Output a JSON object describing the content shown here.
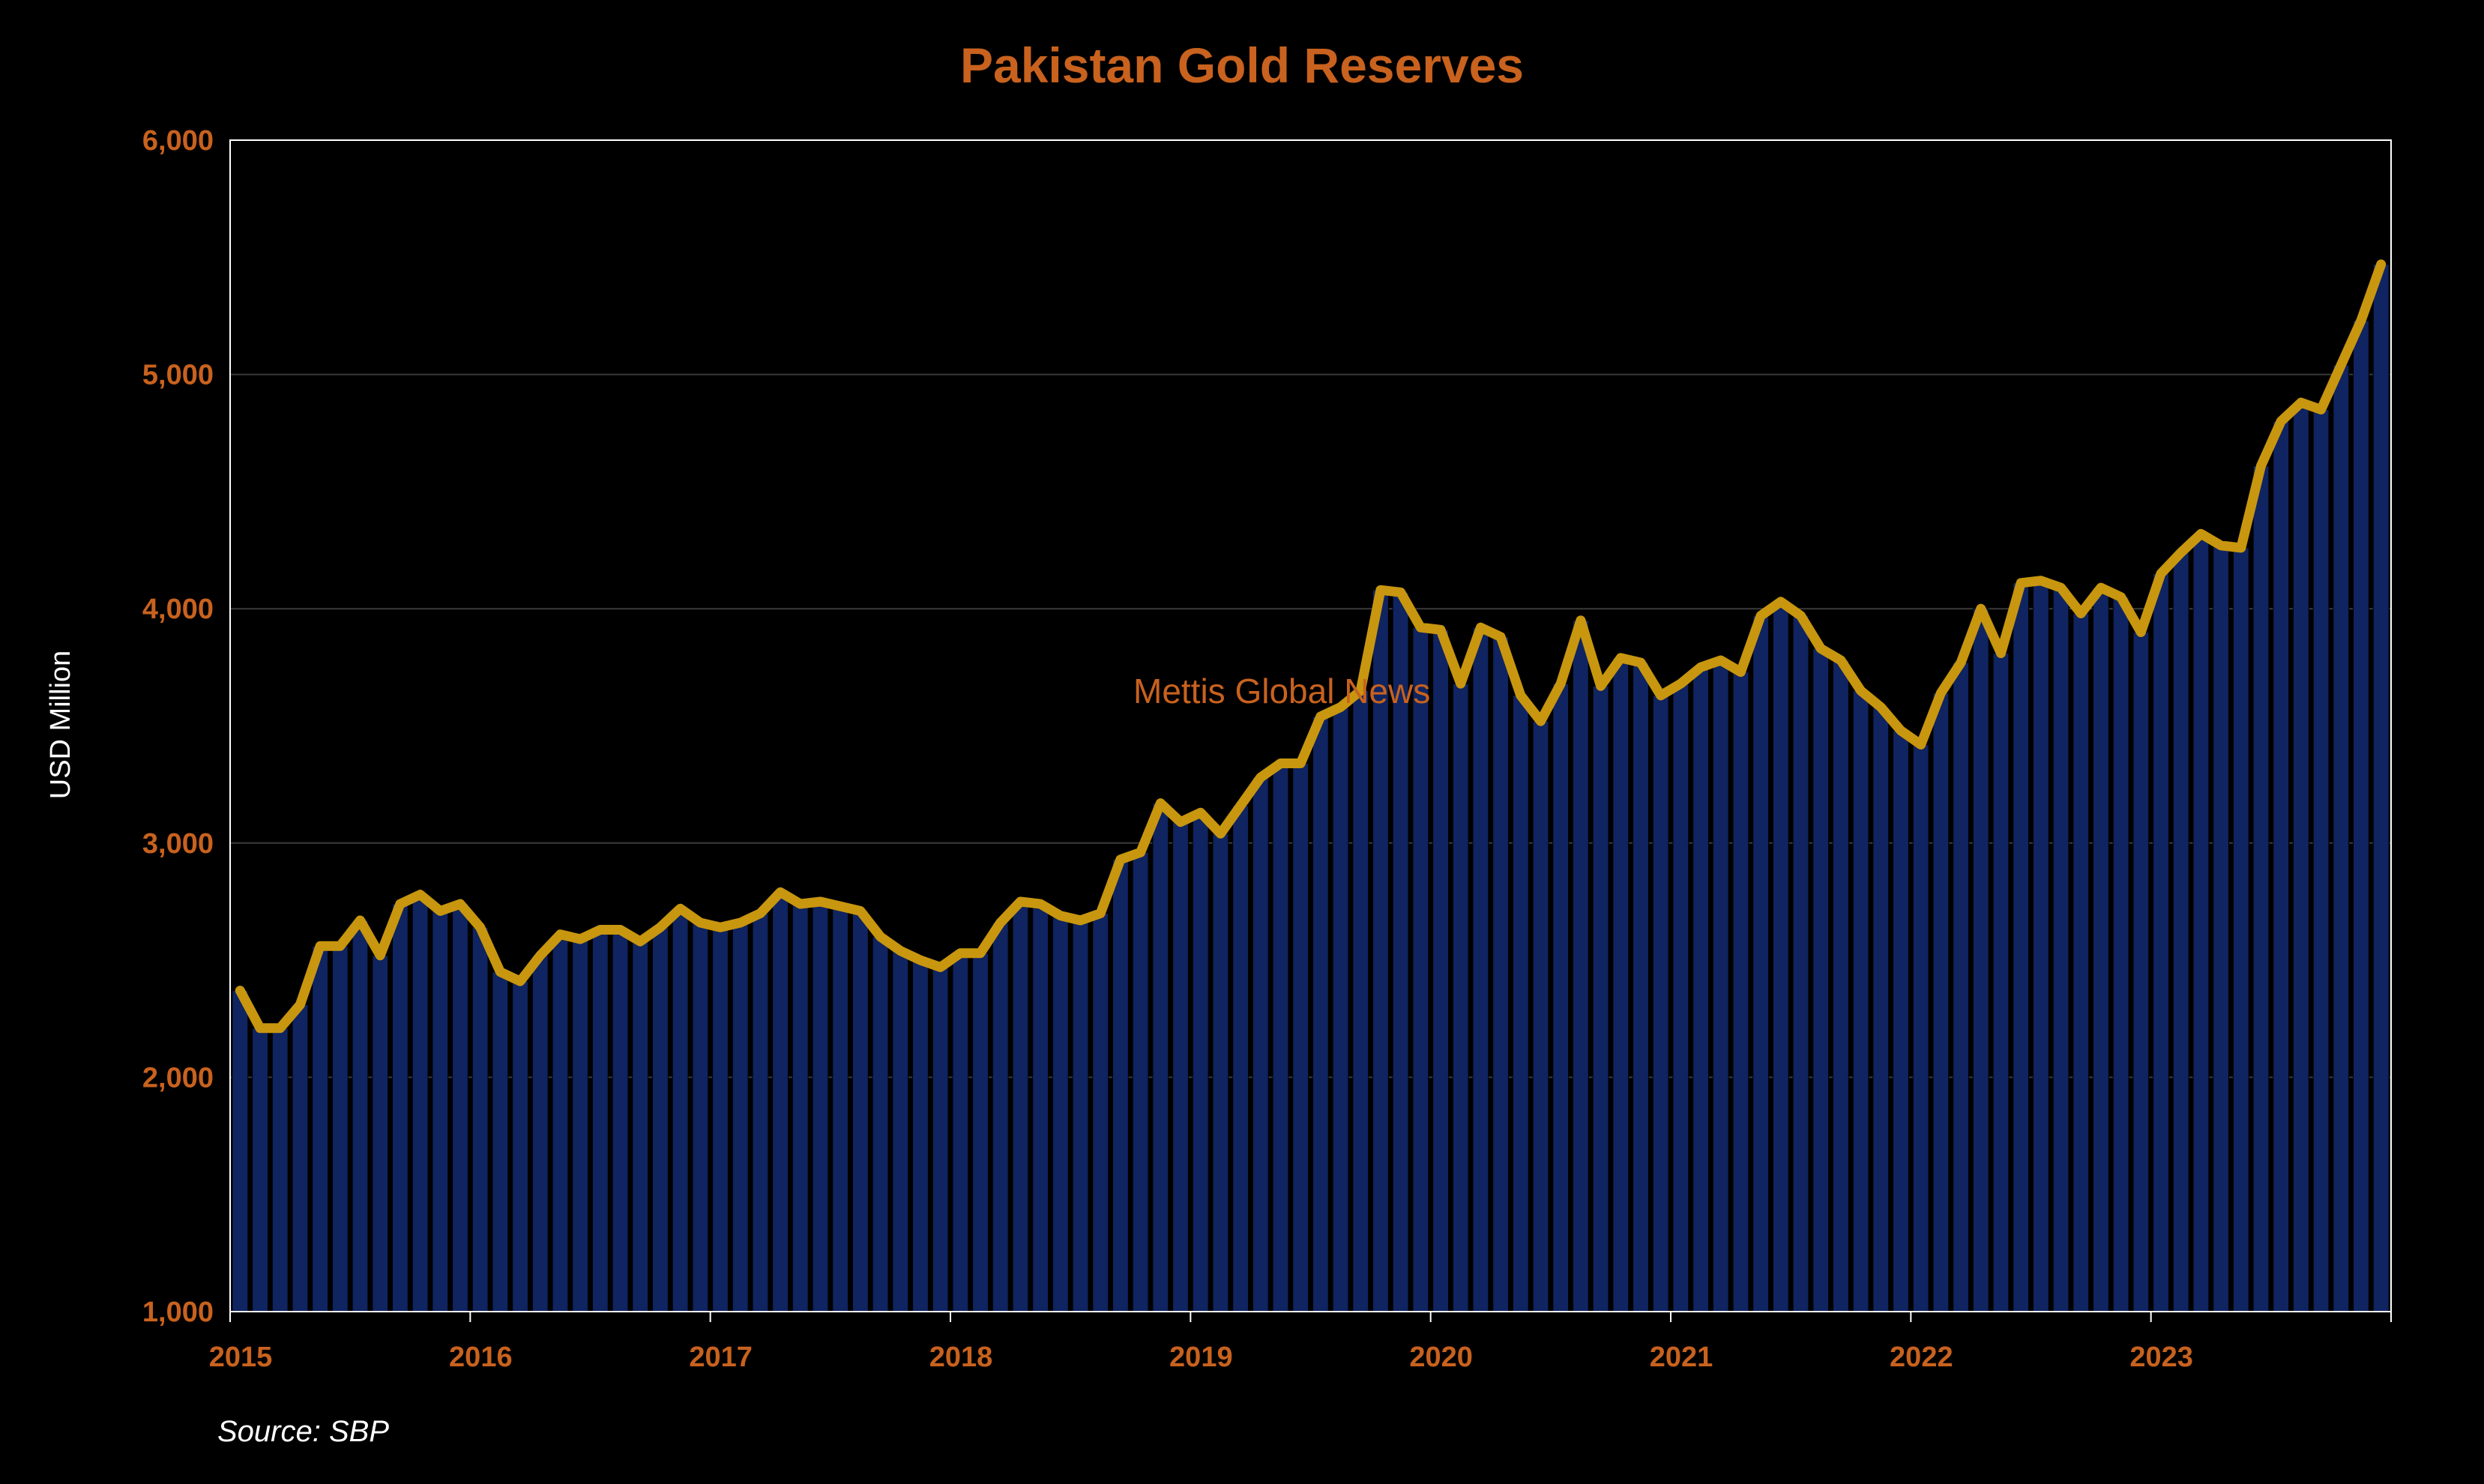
{
  "colors": {
    "background": "#000000",
    "title": "#c8621e",
    "tick_labels": "#c8621e",
    "axis_label": "#ffffff",
    "bar_fill": "#0f2460",
    "bar_stroke": "#000000",
    "line": "#c8960f",
    "gridline": "#3a3a3a",
    "plot_border": "#ffffff",
    "source_text": "#ffffff",
    "watermark": "#c8621e"
  },
  "watermark": "Mettis Global News",
  "source": "Source: SBP",
  "chart_data": {
    "type": "bar",
    "title": "Pakistan Gold Reserves",
    "xlabel": "",
    "ylabel": "USD Million",
    "ylim": [
      1000,
      6000
    ],
    "yticks": [
      1000,
      2000,
      3000,
      4000,
      5000,
      6000
    ],
    "ytick_labels": [
      "1,000",
      "2,000",
      "3,000",
      "4,000",
      "5,000",
      "6,000"
    ],
    "xticks": [
      "2015",
      "2016",
      "2017",
      "2018",
      "2019",
      "2020",
      "2021",
      "2022",
      "2023"
    ],
    "grid": "horizontal",
    "legend": "none",
    "x_start": "2015-01",
    "x_frequency": "monthly",
    "overlay": "line",
    "series": [
      {
        "values": [
          2370,
          2210,
          2210,
          2310,
          2560,
          2560,
          2670,
          2520,
          2740,
          2780,
          2710,
          2740,
          2640,
          2450,
          2410,
          2520,
          2610,
          2590,
          2630,
          2630,
          2580,
          2640,
          2720,
          2660,
          2640,
          2660,
          2700,
          2790,
          2740,
          2750,
          2730,
          2710,
          2600,
          2540,
          2500,
          2470,
          2530,
          2530,
          2660,
          2750,
          2740,
          2690,
          2670,
          2700,
          2930,
          2960,
          3170,
          3090,
          3130,
          3040,
          3160,
          3280,
          3340,
          3340,
          3540,
          3580,
          3650,
          4080,
          4070,
          3920,
          3910,
          3680,
          3920,
          3880,
          3630,
          3520,
          3680,
          3950,
          3670,
          3790,
          3770,
          3630,
          3680,
          3750,
          3780,
          3730,
          3970,
          4030,
          3970,
          3830,
          3780,
          3650,
          3580,
          3480,
          3420,
          3640,
          3770,
          4000,
          3810,
          4110,
          4120,
          4090,
          3980,
          4090,
          4050,
          3900,
          4150,
          4240,
          4320,
          4270,
          4260,
          4610,
          4800,
          4880,
          4850,
          5040,
          5230,
          5470
        ]
      }
    ]
  }
}
